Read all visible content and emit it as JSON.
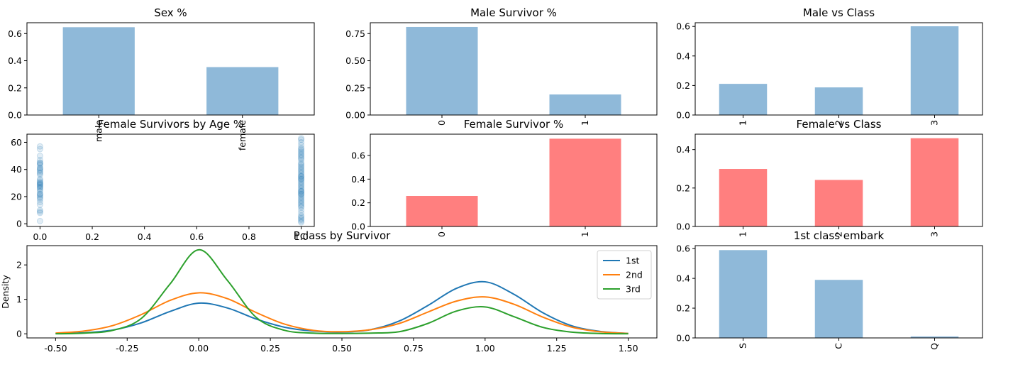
{
  "chart_data": [
    {
      "id": "sex",
      "type": "bar",
      "title": "Sex %",
      "categories": [
        "male",
        "female"
      ],
      "values": [
        0.647,
        0.353
      ],
      "ylim": [
        0,
        0.68
      ],
      "yticks": [
        0.0,
        0.2,
        0.4,
        0.6
      ],
      "ytick_labels": [
        "0.0",
        "0.2",
        "0.4",
        "0.6"
      ],
      "color": "#8fb9d9"
    },
    {
      "id": "male_surv",
      "type": "bar",
      "title": "Male Survivor %",
      "categories": [
        "0",
        "1"
      ],
      "values": [
        0.811,
        0.189
      ],
      "ylim": [
        0,
        0.85
      ],
      "yticks": [
        0.0,
        0.25,
        0.5,
        0.75
      ],
      "ytick_labels": [
        "0.00",
        "0.25",
        "0.50",
        "0.75"
      ],
      "color": "#8fb9d9"
    },
    {
      "id": "male_class",
      "type": "bar",
      "title": "Male vs Class",
      "categories": [
        "1",
        "2",
        "3"
      ],
      "values": [
        0.211,
        0.187,
        0.601
      ],
      "ylim": [
        0,
        0.625
      ],
      "yticks": [
        0.0,
        0.2,
        0.4,
        0.6
      ],
      "ytick_labels": [
        "0.0",
        "0.2",
        "0.4",
        "0.6"
      ],
      "color": "#8fb9d9"
    },
    {
      "id": "female_age",
      "type": "scatter",
      "title": "Female Survivors by Age %",
      "xlim": [
        -0.05,
        1.05
      ],
      "ylim": [
        -2,
        66
      ],
      "xticks": [
        0.0,
        0.2,
        0.4,
        0.6,
        0.8,
        1.0
      ],
      "xtick_labels": [
        "0.0",
        "0.2",
        "0.4",
        "0.6",
        "0.8",
        "1.0"
      ],
      "yticks": [
        0,
        20,
        40,
        60
      ],
      "ytick_labels": [
        "0",
        "20",
        "40",
        "60"
      ],
      "x": [
        0,
        0,
        0,
        0,
        0,
        0,
        0,
        0,
        0,
        0,
        0,
        0,
        0,
        0,
        0,
        0,
        0,
        0,
        0,
        0,
        0,
        0,
        0,
        0,
        0,
        0,
        0,
        0,
        0,
        0,
        0,
        0,
        0,
        0,
        0,
        0,
        0,
        0,
        0,
        0,
        1,
        1,
        1,
        1,
        1,
        1,
        1,
        1,
        1,
        1,
        1,
        1,
        1,
        1,
        1,
        1,
        1,
        1,
        1,
        1,
        1,
        1,
        1,
        1,
        1,
        1,
        1,
        1,
        1,
        1,
        1,
        1,
        1,
        1,
        1,
        1,
        1,
        1,
        1,
        1,
        1,
        1,
        1,
        1,
        1,
        1,
        1,
        1,
        1,
        1,
        1,
        1,
        1,
        1,
        1,
        1,
        1,
        1,
        1,
        1
      ],
      "y": [
        2,
        9,
        10,
        14,
        16,
        18,
        20,
        21,
        22,
        24,
        25,
        26,
        27,
        28,
        29,
        30,
        30,
        31,
        33,
        36,
        37,
        38,
        39,
        40,
        41,
        43,
        44,
        45,
        47,
        50,
        55,
        57,
        8,
        19,
        22,
        27,
        29,
        32,
        41,
        45,
        1,
        2,
        3,
        4,
        5,
        6,
        8,
        10,
        12,
        13,
        14,
        15,
        16,
        17,
        18,
        19,
        20,
        21,
        22,
        22,
        23,
        24,
        24,
        25,
        26,
        27,
        28,
        29,
        30,
        31,
        32,
        33,
        34,
        35,
        35,
        36,
        37,
        38,
        39,
        40,
        41,
        42,
        43,
        44,
        45,
        47,
        48,
        49,
        50,
        51,
        52,
        53,
        54,
        55,
        56,
        58,
        60,
        62,
        63,
        33
      ],
      "color": "#1f77b4"
    },
    {
      "id": "female_surv",
      "type": "bar",
      "title": "Female Survivor %",
      "categories": [
        "0",
        "1"
      ],
      "values": [
        0.258,
        0.742
      ],
      "ylim": [
        0,
        0.78
      ],
      "yticks": [
        0.0,
        0.2,
        0.4,
        0.6
      ],
      "ytick_labels": [
        "0.0",
        "0.2",
        "0.4",
        "0.6"
      ],
      "color": "#ff7f7f"
    },
    {
      "id": "female_class",
      "type": "bar",
      "title": "Female vs Class",
      "categories": [
        "1",
        "2",
        "3"
      ],
      "values": [
        0.299,
        0.242,
        0.459
      ],
      "ylim": [
        0,
        0.48
      ],
      "yticks": [
        0.0,
        0.2,
        0.4
      ],
      "ytick_labels": [
        "0.0",
        "0.2",
        "0.4"
      ],
      "color": "#ff7f7f"
    },
    {
      "id": "pclass_kde",
      "type": "line",
      "title": "Pclass by Survivor",
      "ylabel": "Density",
      "xlim": [
        -0.6,
        1.6
      ],
      "ylim": [
        -0.12,
        2.56
      ],
      "xticks": [
        -0.5,
        -0.25,
        0.0,
        0.25,
        0.5,
        0.75,
        1.0,
        1.25,
        1.5
      ],
      "xtick_labels": [
        "-0.50",
        "-0.25",
        "0.00",
        "0.25",
        "0.50",
        "0.75",
        "1.00",
        "1.25",
        "1.50"
      ],
      "yticks": [
        0,
        1,
        2
      ],
      "ytick_labels": [
        "0",
        "1",
        "2"
      ],
      "legend_position": "top-right",
      "series": [
        {
          "name": "1st",
          "color": "#1f77b4",
          "x": [
            -0.5,
            -0.4,
            -0.3,
            -0.2,
            -0.1,
            0,
            0.1,
            0.2,
            0.3,
            0.4,
            0.5,
            0.6,
            0.7,
            0.8,
            0.9,
            1,
            1.1,
            1.2,
            1.3,
            1.4,
            1.5
          ],
          "values": [
            0.01,
            0.03,
            0.11,
            0.32,
            0.65,
            0.89,
            0.75,
            0.43,
            0.19,
            0.08,
            0.05,
            0.12,
            0.37,
            0.82,
            1.32,
            1.51,
            1.15,
            0.62,
            0.24,
            0.07,
            0.01
          ]
        },
        {
          "name": "2nd",
          "color": "#ff7f0e",
          "x": [
            -0.5,
            -0.4,
            -0.3,
            -0.2,
            -0.1,
            0,
            0.1,
            0.2,
            0.3,
            0.4,
            0.5,
            0.6,
            0.7,
            0.8,
            0.9,
            1,
            1.1,
            1.2,
            1.3,
            1.4,
            1.5
          ],
          "values": [
            0.02,
            0.08,
            0.24,
            0.56,
            0.97,
            1.19,
            1.02,
            0.62,
            0.28,
            0.1,
            0.06,
            0.12,
            0.3,
            0.63,
            0.95,
            1.07,
            0.86,
            0.49,
            0.2,
            0.06,
            0.01
          ]
        },
        {
          "name": "3rd",
          "color": "#2ca02c",
          "x": [
            -0.5,
            -0.4,
            -0.3,
            -0.2,
            -0.1,
            0,
            0.1,
            0.2,
            0.3,
            0.4,
            0.5,
            0.6,
            0.7,
            0.8,
            0.9,
            1,
            1.1,
            1.2,
            1.3,
            1.4,
            1.5
          ],
          "values": [
            0.0,
            0.02,
            0.1,
            0.45,
            1.45,
            2.44,
            1.55,
            0.48,
            0.1,
            0.02,
            0.01,
            0.02,
            0.06,
            0.3,
            0.66,
            0.78,
            0.5,
            0.19,
            0.05,
            0.01,
            0.0
          ]
        }
      ]
    },
    {
      "id": "first_embark",
      "type": "bar",
      "title": "1st class embark",
      "categories": [
        "S",
        "C",
        "Q"
      ],
      "values": [
        0.59,
        0.39,
        0.01
      ],
      "ylim": [
        0,
        0.62
      ],
      "yticks": [
        0.0,
        0.2,
        0.4,
        0.6
      ],
      "ytick_labels": [
        "0.0",
        "0.2",
        "0.4",
        "0.6"
      ],
      "color": "#8fb9d9"
    }
  ]
}
